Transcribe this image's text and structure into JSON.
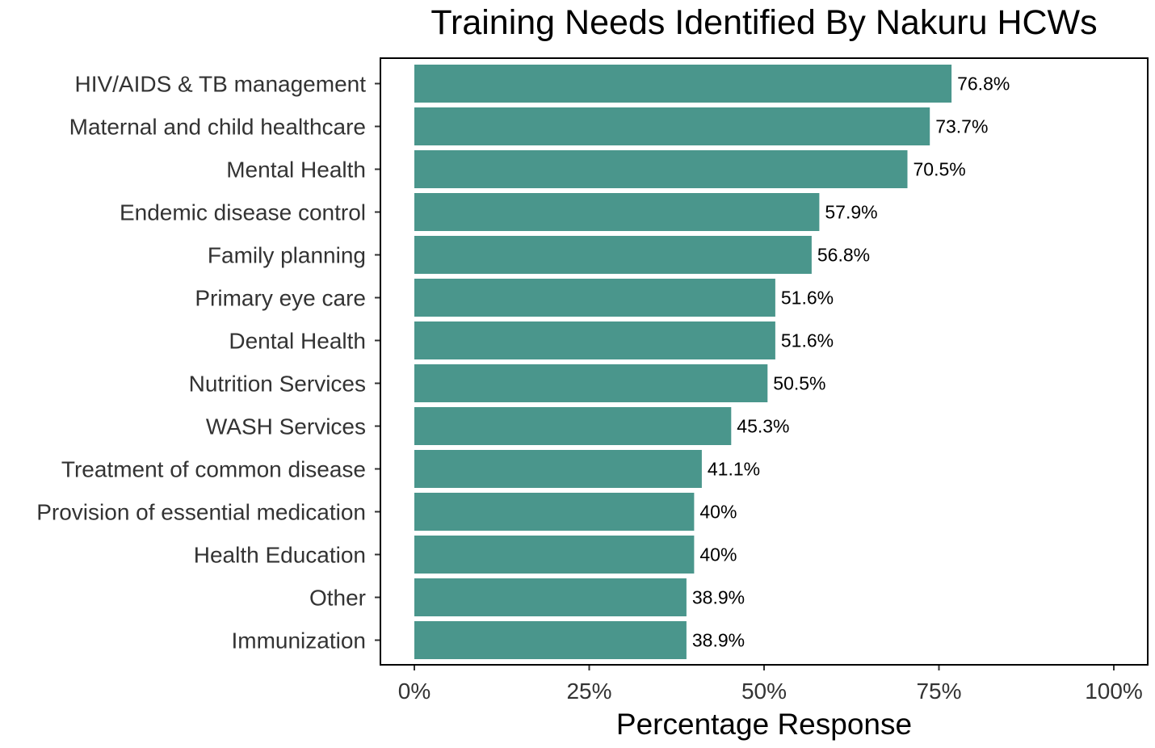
{
  "chart_data": {
    "type": "bar",
    "orientation": "horizontal",
    "title": "Training Needs Identified By Nakuru HCWs",
    "xlabel": "Percentage Response",
    "ylabel": "",
    "xlim": [
      0,
      100
    ],
    "xticks": [
      0,
      25,
      50,
      75,
      100
    ],
    "xtick_labels": [
      "0%",
      "25%",
      "50%",
      "75%",
      "100%"
    ],
    "categories": [
      "HIV/AIDS & TB management",
      "Maternal and child healthcare",
      "Mental Health",
      "Endemic disease control",
      "Family planning",
      "Primary eye care",
      "Dental Health",
      "Nutrition Services",
      "WASH Services",
      "Treatment of common disease",
      "Provision of essential medication",
      "Health Education",
      "Other",
      "Immunization"
    ],
    "values": [
      76.8,
      73.7,
      70.5,
      57.9,
      56.8,
      51.6,
      51.6,
      50.5,
      45.3,
      41.1,
      40,
      40,
      38.9,
      38.9
    ],
    "data_labels": [
      "76.8%",
      "73.7%",
      "70.5%",
      "57.9%",
      "56.8%",
      "51.6%",
      "51.6%",
      "50.5%",
      "45.3%",
      "41.1%",
      "40%",
      "40%",
      "38.9%",
      "38.9%"
    ],
    "bar_color": "#4a968c",
    "grid": false,
    "legend": "none"
  }
}
